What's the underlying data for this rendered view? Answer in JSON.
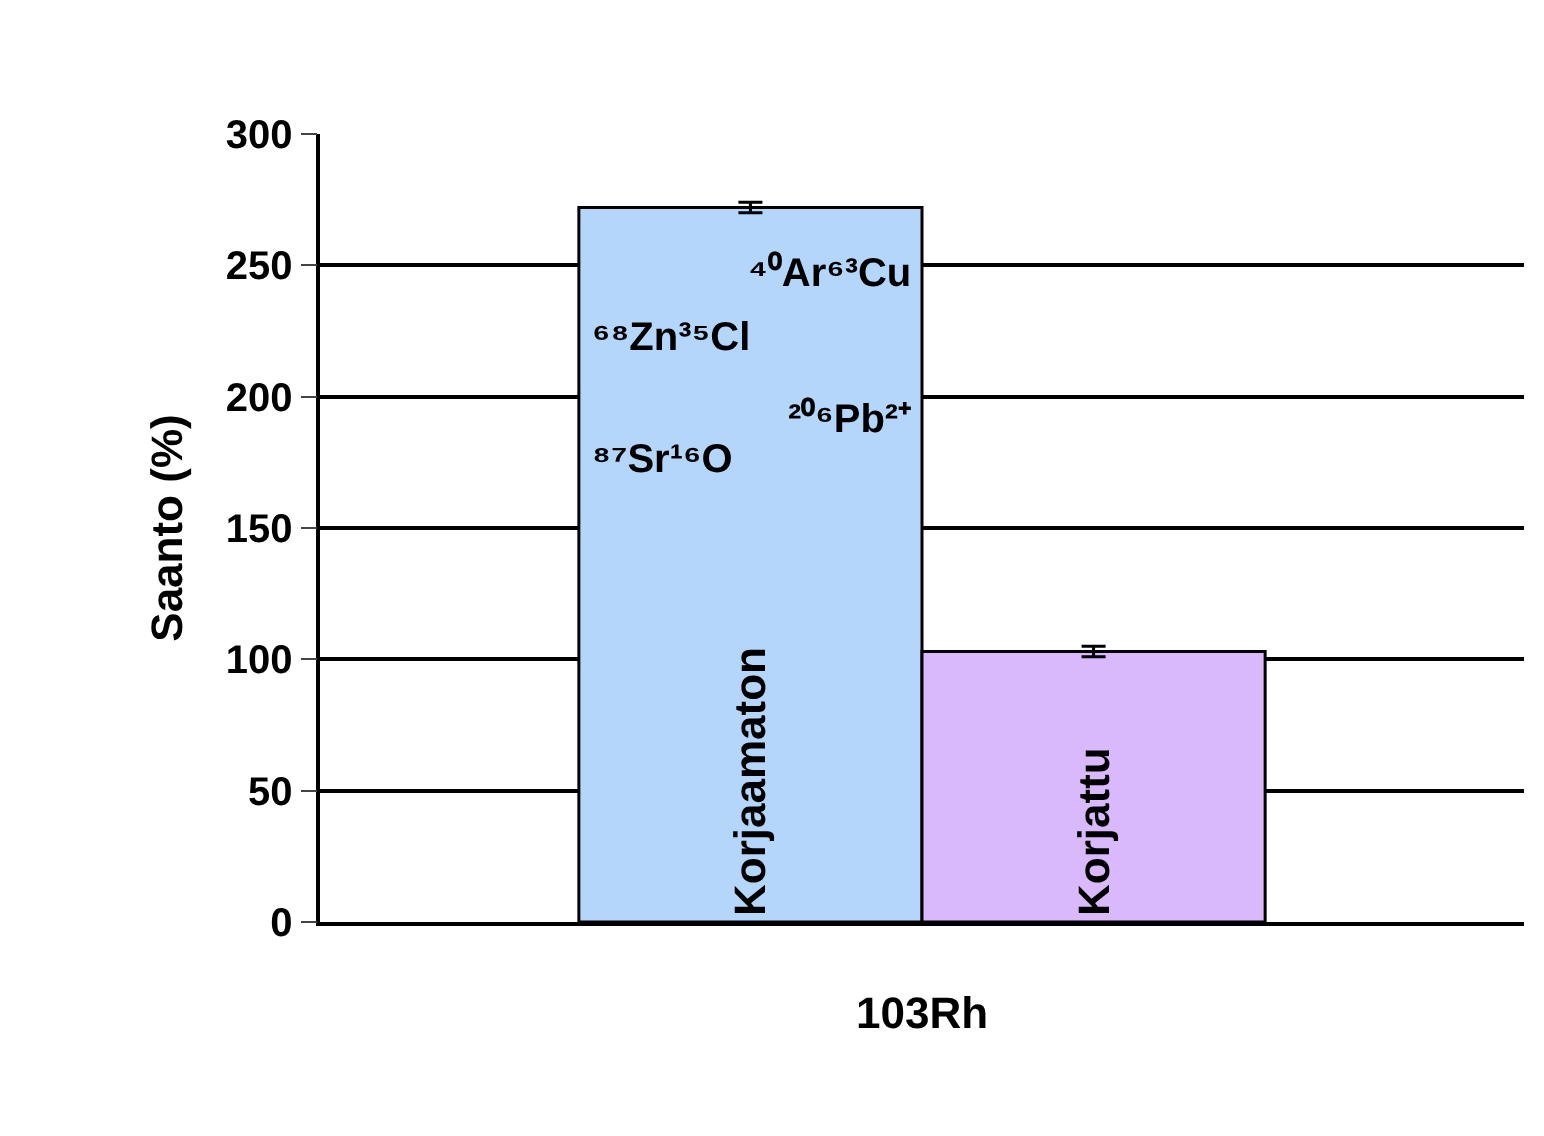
{
  "chart_data": {
    "type": "bar",
    "ylabel": "Saanto (%)",
    "categories": [
      "103Rh"
    ],
    "series": [
      {
        "name": "Korjaamaton",
        "color": "#b4d6fa",
        "values": [
          272
        ],
        "errors": [
          2
        ]
      },
      {
        "name": "Korjattu",
        "color": "#d9b8fb",
        "values": [
          103
        ],
        "errors": [
          2
        ]
      }
    ],
    "annotations": [
      "⁴⁰Ar⁶³Cu",
      "⁶⁸Zn³⁵Cl",
      "²⁰⁶Pb²⁺",
      "⁸⁷Sr¹⁶O"
    ],
    "ylim": [
      0,
      300
    ],
    "yticks": [
      0,
      50,
      100,
      150,
      200,
      250,
      300
    ],
    "grid": "y",
    "legend": false
  }
}
